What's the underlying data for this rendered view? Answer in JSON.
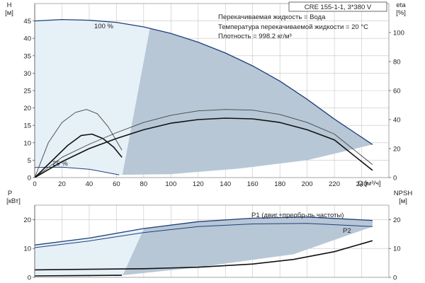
{
  "chart_data": [
    {
      "type": "line",
      "title": "CRE 155-1-1, 3*380 V",
      "annotations": [
        "Перекачиваемая жидкость = Вода",
        "Температура перекачиваемой жидкости = 20 °C",
        "Плотность = 998.2 кг/м³"
      ],
      "xlabel": "Q [м³/ч]",
      "xlim": [
        0,
        260
      ],
      "x_ticks": [
        0,
        20,
        40,
        60,
        80,
        100,
        120,
        140,
        160,
        180,
        200,
        220,
        240
      ],
      "ylabel_left": {
        "symbol": "H",
        "unit": "[м]"
      },
      "ylim_left": [
        0,
        50
      ],
      "y_ticks_left": [
        0,
        5,
        10,
        15,
        20,
        25,
        30,
        35,
        40,
        45
      ],
      "ylabel_right": {
        "symbol": "eta",
        "unit": "[%]"
      },
      "ylim_right": [
        0,
        120
      ],
      "y_ticks_right": [
        0,
        20,
        40,
        60,
        80,
        100
      ],
      "grid": true,
      "labels": {
        "curve_100": "100 %",
        "curve_25": "25 %"
      },
      "series": [
        {
          "axis": "left",
          "color": "#1f3f7a",
          "width": 1.3,
          "x": [
            0,
            20,
            40,
            60,
            80,
            100,
            120,
            140,
            160,
            180,
            200,
            220,
            248
          ],
          "y": [
            45.0,
            45.4,
            45.2,
            44.6,
            43.3,
            41.4,
            38.9,
            35.8,
            32.1,
            27.7,
            22.5,
            16.8,
            9.5
          ]
        },
        {
          "axis": "left",
          "color": "#1f3f7a",
          "width": 1.0,
          "x": [
            0,
            20,
            40,
            62
          ],
          "y": [
            2.9,
            3.0,
            2.4,
            0.8
          ]
        },
        {
          "axis": "right",
          "color": "#444444",
          "width": 0.9,
          "x": [
            0,
            10,
            20,
            30,
            38,
            46,
            54,
            64
          ],
          "y": [
            0,
            24,
            38,
            45,
            47,
            44,
            35,
            19
          ]
        },
        {
          "axis": "right",
          "color": "#111111",
          "width": 1.6,
          "x": [
            0,
            12,
            24,
            34,
            42,
            50,
            58,
            64
          ],
          "y": [
            0,
            11,
            22,
            29,
            30,
            27,
            21,
            14
          ]
        },
        {
          "axis": "right",
          "color": "#444444",
          "width": 0.9,
          "x": [
            0,
            20,
            40,
            60,
            80,
            100,
            120,
            140,
            160,
            180,
            200,
            220,
            248
          ],
          "y": [
            0,
            14,
            23,
            31,
            38,
            43,
            46,
            47,
            46.5,
            43.5,
            38,
            30,
            9
          ]
        },
        {
          "axis": "right",
          "color": "#111111",
          "width": 1.6,
          "x": [
            0,
            20,
            40,
            60,
            80,
            100,
            120,
            140,
            160,
            180,
            200,
            220,
            248
          ],
          "y": [
            0,
            11,
            20,
            27,
            33,
            37.5,
            40,
            41,
            40.5,
            38,
            33,
            26,
            5
          ]
        }
      ],
      "operating_region": {
        "upper": {
          "x": [
            0,
            20,
            40,
            60,
            80,
            100,
            120,
            140,
            160,
            180,
            200,
            220,
            248
          ],
          "y": [
            45.0,
            45.4,
            45.2,
            44.6,
            43.3,
            41.4,
            38.9,
            35.8,
            32.1,
            27.7,
            22.5,
            16.8,
            9.5
          ]
        },
        "lower": {
          "x": [
            0,
            20,
            40,
            62,
            100,
            150,
            200,
            248
          ],
          "y": [
            2.9,
            3.0,
            2.4,
            0.8,
            1.0,
            2.6,
            5.0,
            9.5
          ]
        }
      }
    },
    {
      "type": "line",
      "xlim": [
        0,
        260
      ],
      "ylabel_left": {
        "symbol": "P",
        "unit": "[кВт]"
      },
      "ylim_left": [
        0,
        25
      ],
      "y_ticks_left": [
        0,
        10,
        20
      ],
      "ylabel_right": {
        "symbol": "NPSH",
        "unit": "[м]"
      },
      "ylim_right": [
        0,
        25
      ],
      "y_ticks_right": [
        0,
        10,
        20
      ],
      "grid": true,
      "series": [
        {
          "name": "P1 (двиг.+преобр-ль частоты)",
          "axis": "left",
          "color": "#1f3f7a",
          "width": 1.3,
          "x": [
            0,
            40,
            80,
            120,
            160,
            200,
            248
          ],
          "y": [
            11.2,
            13.6,
            16.9,
            19.3,
            20.5,
            20.9,
            19.7
          ]
        },
        {
          "name": "P2",
          "axis": "left",
          "color": "#1f3f7a",
          "width": 1.0,
          "x": [
            0,
            40,
            80,
            120,
            160,
            200,
            248
          ],
          "y": [
            10.3,
            12.6,
            15.5,
            17.6,
            18.5,
            18.7,
            17.6
          ]
        },
        {
          "axis": "left",
          "color": "#1f3f7a",
          "width": 1.0,
          "x": [
            0,
            30,
            64
          ],
          "y": [
            0.5,
            0.6,
            0.7
          ]
        },
        {
          "axis": "right",
          "color": "#111111",
          "width": 1.6,
          "x": [
            0,
            40,
            80,
            120,
            160,
            190,
            220,
            248
          ],
          "y": [
            2.6,
            2.8,
            3.0,
            3.5,
            4.6,
            6.2,
            8.9,
            12.7
          ]
        },
        {
          "axis": "right",
          "color": "#111111",
          "width": 1.6,
          "x": [
            0,
            30,
            64
          ],
          "y": [
            0.5,
            0.6,
            0.7
          ]
        }
      ],
      "operating_region": {
        "upper": {
          "x": [
            0,
            40,
            80,
            120,
            160,
            200,
            248
          ],
          "y": [
            11.2,
            13.6,
            16.9,
            19.3,
            20.5,
            20.9,
            19.7
          ]
        },
        "lower": {
          "x": [
            0,
            64,
            120,
            190,
            248
          ],
          "y": [
            0.5,
            0.7,
            3.5,
            8.0,
            17.6
          ]
        }
      }
    }
  ]
}
